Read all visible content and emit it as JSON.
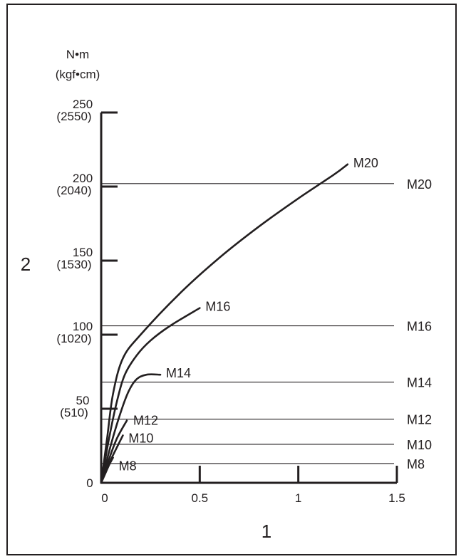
{
  "chart_data": {
    "type": "line",
    "title": "",
    "xlabel": "1",
    "ylabel": "2",
    "y_unit": [
      "N•m",
      "(kgf•cm)"
    ],
    "xlim": [
      0,
      1.5
    ],
    "ylim": [
      0,
      250
    ],
    "x_ticks": [
      {
        "value": 0,
        "label": "0"
      },
      {
        "value": 0.5,
        "label": "0.5"
      },
      {
        "value": 1,
        "label": "1"
      },
      {
        "value": 1.5,
        "label": "1.5"
      }
    ],
    "y_ticks": [
      {
        "value": 0,
        "label": "0",
        "sub": ""
      },
      {
        "value": 50,
        "label": "50",
        "sub": "(510)"
      },
      {
        "value": 100,
        "label": "100",
        "sub": "(1020)"
      },
      {
        "value": 150,
        "label": "150",
        "sub": "(1530)"
      },
      {
        "value": 200,
        "label": "200",
        "sub": "(2040)"
      },
      {
        "value": 250,
        "label": "250",
        "sub": "(2550)"
      }
    ],
    "grid": false,
    "reference_lines": [
      {
        "name": "M20",
        "y": 202
      },
      {
        "name": "M16",
        "y": 106
      },
      {
        "name": "M14",
        "y": 68
      },
      {
        "name": "M12",
        "y": 43
      },
      {
        "name": "M10",
        "y": 26
      },
      {
        "name": "M8",
        "y": 13
      }
    ],
    "series": [
      {
        "name": "M20",
        "x": [
          0,
          0.03,
          0.06,
          0.11,
          0.2,
          0.4,
          0.6,
          0.8,
          1.0,
          1.18,
          1.25
        ],
        "y": [
          0,
          30,
          60,
          84,
          100,
          128,
          152,
          173,
          192,
          208,
          215
        ]
      },
      {
        "name": "M16",
        "x": [
          0,
          0.04,
          0.08,
          0.12,
          0.18,
          0.25,
          0.35,
          0.5
        ],
        "y": [
          0,
          30,
          55,
          73,
          86,
          96,
          106,
          118
        ]
      },
      {
        "name": "M14",
        "x": [
          0,
          0.05,
          0.1,
          0.14,
          0.18,
          0.23,
          0.3
        ],
        "y": [
          0,
          26,
          48,
          62,
          70,
          73,
          73
        ]
      },
      {
        "name": "M12",
        "x": [
          0,
          0.04,
          0.08,
          0.13
        ],
        "y": [
          0,
          16,
          30,
          42
        ]
      },
      {
        "name": "M10",
        "x": [
          0,
          0.04,
          0.08,
          0.11
        ],
        "y": [
          0,
          13,
          24,
          32
        ]
      },
      {
        "name": "M8",
        "x": [
          0,
          0.02,
          0.04,
          0.06
        ],
        "y": [
          0,
          6,
          12,
          17
        ]
      }
    ]
  }
}
